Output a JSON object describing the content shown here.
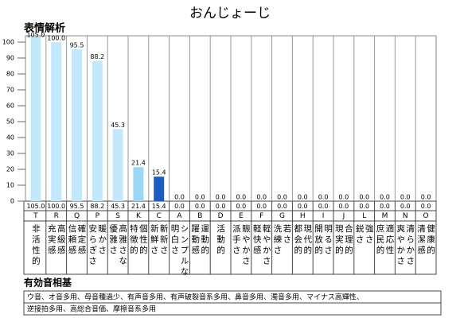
{
  "title": "おんじょーじ",
  "section_title": "表情解析",
  "chart_data": {
    "type": "bar",
    "categories": [
      "T",
      "R",
      "Q",
      "P",
      "S",
      "K",
      "C",
      "A",
      "B",
      "D",
      "E",
      "F",
      "G",
      "H",
      "I",
      "J",
      "L",
      "M",
      "N",
      "O"
    ],
    "descriptions": [
      [
        "非活性的"
      ],
      [
        "充実感",
        "高級感"
      ],
      [
        "信頼感",
        "確定感"
      ],
      [
        "安らぎさ",
        "暖かさ"
      ],
      [
        "優雅さ",
        "高雅さな"
      ],
      [
        "特徴的",
        "個性的"
      ],
      [
        "新鮮さ",
        "斬新さ"
      ],
      [
        "明白さ",
        "シンプルな"
      ],
      [
        "躍動感",
        "運動的"
      ],
      [
        "活動的"
      ],
      [
        "派手さ",
        "賑やかさ"
      ],
      [
        "軽快感",
        "軽やかさ"
      ],
      [
        "洗練さ",
        "若さ"
      ],
      [
        "都会的",
        "現代的"
      ],
      [
        "開放的",
        "明るさ"
      ],
      [
        "現実的",
        "合理的"
      ],
      [
        "鋭さ",
        "強さ"
      ],
      [
        "庶民的",
        "適応性"
      ],
      [
        "爽やかさ",
        "清らかさ"
      ],
      [
        "清潔感",
        "健康的"
      ]
    ],
    "values": [
      105,
      100,
      95.5,
      88.2,
      45.3,
      21.4,
      15.4,
      0,
      0,
      0,
      0,
      0,
      0,
      0,
      0,
      0,
      0,
      0,
      0,
      0
    ],
    "value_labels": [
      "105.0",
      "100.0",
      "95.5",
      "88.2",
      "45.3",
      "21.4",
      "15.4",
      "0.0",
      "0.0",
      "0.0",
      "0.0",
      "0.0",
      "0.0",
      "0.0",
      "0.0",
      "0.0",
      "0.0",
      "0.0",
      "0.0",
      "0.0"
    ],
    "colors": [
      "#c4e8fb",
      "#c4e8fb",
      "#c4e8fb",
      "#c4e8fb",
      "#c4e8fb",
      "#9bd7f6",
      "#1a5cc2",
      "#c4e8fb",
      "#c4e8fb",
      "#c4e8fb",
      "#c4e8fb",
      "#c4e8fb",
      "#c4e8fb",
      "#c4e8fb",
      "#c4e8fb",
      "#c4e8fb",
      "#c4e8fb",
      "#c4e8fb",
      "#c4e8fb",
      "#c4e8fb"
    ],
    "ylim": [
      0,
      100
    ],
    "yticks": [
      0,
      10,
      20,
      30,
      40,
      50,
      60,
      70,
      80,
      90,
      100
    ]
  },
  "effective": {
    "title": "有効音相基",
    "lines": [
      "ウ音、オ音多用、母音種過少、有声音多用、有声破裂音系多用、鼻音多用、濁音多用、マイナス高輝性、",
      "逆接拍多用、高総合音価、摩擦音系多用"
    ]
  }
}
